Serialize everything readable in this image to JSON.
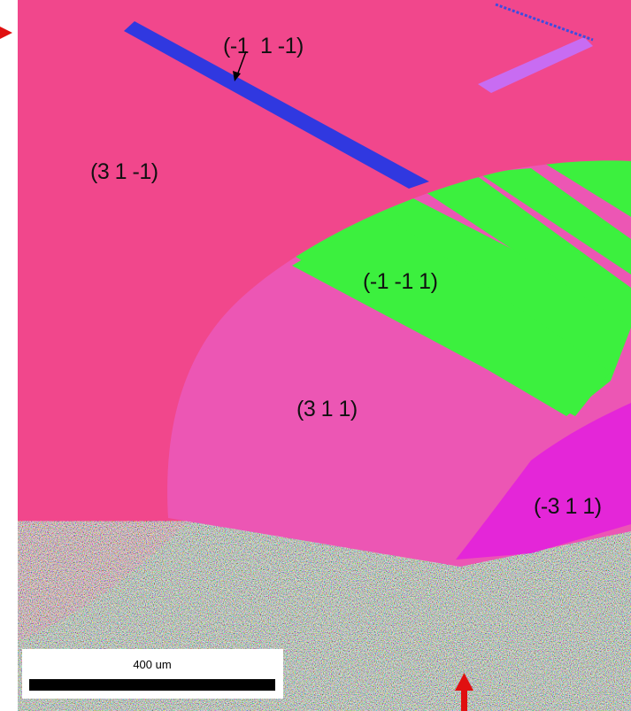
{
  "labels": [
    "(-1  1 -1)",
    "(3 1 -1)",
    "(-1 -1 1)",
    "(3 1 1)",
    "(-3 1 1)"
  ],
  "scale_bar": "400 um"
}
